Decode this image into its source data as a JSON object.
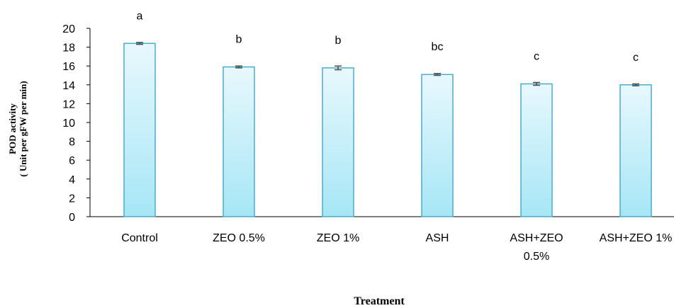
{
  "chart_data": {
    "type": "bar",
    "categories": [
      "Control",
      "ZEO 0.5%",
      "ZEO 1%",
      "ASH",
      "ASH+ZEO 0.5%",
      "ASH+ZEO 1%"
    ],
    "category_lines": [
      [
        "Control"
      ],
      [
        "ZEO 0.5%"
      ],
      [
        "ZEO 1%"
      ],
      [
        "ASH"
      ],
      [
        "ASH+ZEO",
        "0.5%"
      ],
      [
        "ASH+ZEO 1%"
      ]
    ],
    "values": [
      18.4,
      15.9,
      15.8,
      15.1,
      14.1,
      14.0
    ],
    "errors": [
      0.1,
      0.1,
      0.2,
      0.1,
      0.15,
      0.1
    ],
    "letters": [
      "a",
      "b",
      "b",
      "bc",
      "c",
      "c"
    ],
    "ylim": [
      0,
      20
    ],
    "yticks": [
      0,
      2,
      4,
      6,
      8,
      10,
      12,
      14,
      16,
      18,
      20
    ],
    "ylabel_lines": [
      "POD activity",
      "( Unit per gFW per min)"
    ],
    "xlabel": "Treatment",
    "grid": false,
    "colors": {
      "bar_top": "#e8f8fd",
      "bar_bottom": "#a6e6f6",
      "bar_edge": "#4bacc6",
      "error": "#4d4d4d",
      "axis": "#000000"
    }
  }
}
